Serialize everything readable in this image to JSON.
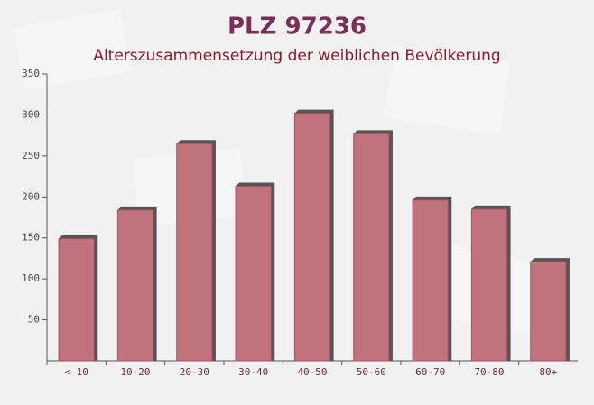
{
  "chart_data": {
    "type": "bar",
    "title": "PLZ 97236",
    "subtitle": "Alterszusammensetzung der weiblichen Bevölkerung",
    "categories": [
      "< 10",
      "10-20",
      "20-30",
      "30-40",
      "40-50",
      "50-60",
      "60-70",
      "70-80",
      "80+"
    ],
    "values": [
      149,
      184,
      265,
      213,
      302,
      277,
      196,
      185,
      121
    ],
    "color": "#c0737c",
    "ylim": [
      0,
      350
    ],
    "yticks": [
      50,
      100,
      150,
      200,
      250,
      300,
      350
    ],
    "grid": false
  }
}
